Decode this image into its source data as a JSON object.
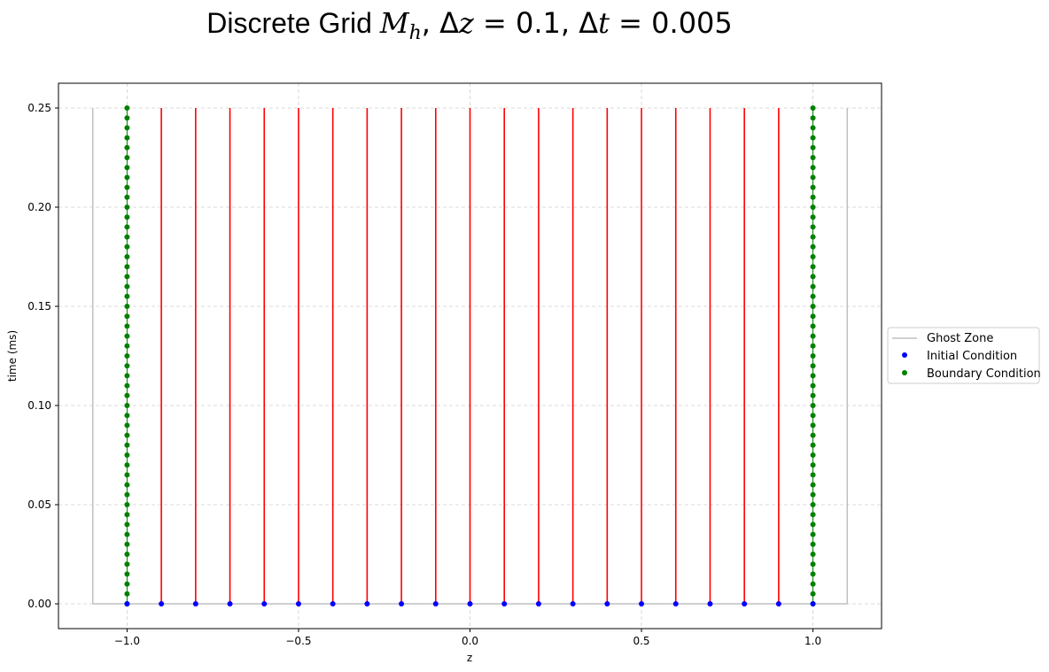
{
  "chart_data": {
    "type": "scatter",
    "title": {
      "prefix": "Discrete Grid ",
      "symbol": "M",
      "subscript": "h",
      "sep1": ",  ",
      "dz_symbol": "z",
      "dz_value": "0.1",
      "sep2": ",  ",
      "dt_symbol": "t",
      "dt_value": "0.005"
    },
    "xlabel": "z",
    "ylabel": "time (ms)",
    "xlim": [
      -1.2,
      1.2
    ],
    "ylim": [
      -0.0125,
      0.2625
    ],
    "x_ticks": [
      -1.0,
      -0.5,
      0.0,
      0.5,
      1.0
    ],
    "x_tick_labels": [
      "−1.0",
      "−0.5",
      "0.0",
      "0.5",
      "1.0"
    ],
    "y_ticks": [
      0.0,
      0.05,
      0.1,
      0.15,
      0.2,
      0.25
    ],
    "y_tick_labels": [
      "0.00",
      "0.05",
      "0.10",
      "0.15",
      "0.20",
      "0.25"
    ],
    "grid": true,
    "legend_position": "outside-right",
    "legend_entries": [
      "Ghost Zone",
      "Initial Condition",
      "Boundary Condition"
    ],
    "ghost_zone": {
      "name": "Ghost Zone",
      "color": "#c0c0c0",
      "x": [
        -1.1,
        1.1
      ],
      "t_range": [
        0.0,
        0.25
      ]
    },
    "interior_lines": {
      "color": "#ff0000",
      "x": [
        -0.9,
        -0.8,
        -0.7,
        -0.6,
        -0.5,
        -0.4,
        -0.3,
        -0.2,
        -0.1,
        0.0,
        0.1,
        0.2,
        0.3,
        0.4,
        0.5,
        0.6,
        0.7,
        0.8,
        0.9
      ],
      "t_range": [
        0.0,
        0.25
      ]
    },
    "series": [
      {
        "name": "Initial Condition",
        "color": "#0000ff",
        "t": 0.0,
        "x": [
          -1.0,
          -0.9,
          -0.8,
          -0.7,
          -0.6,
          -0.5,
          -0.4,
          -0.3,
          -0.2,
          -0.1,
          0.0,
          0.1,
          0.2,
          0.3,
          0.4,
          0.5,
          0.6,
          0.7,
          0.8,
          0.9,
          1.0
        ]
      },
      {
        "name": "Boundary Condition",
        "color": "#008000",
        "x": [
          -1.0,
          1.0
        ],
        "t_start": 0.0,
        "t_end": 0.25,
        "t_step": 0.005
      }
    ]
  }
}
